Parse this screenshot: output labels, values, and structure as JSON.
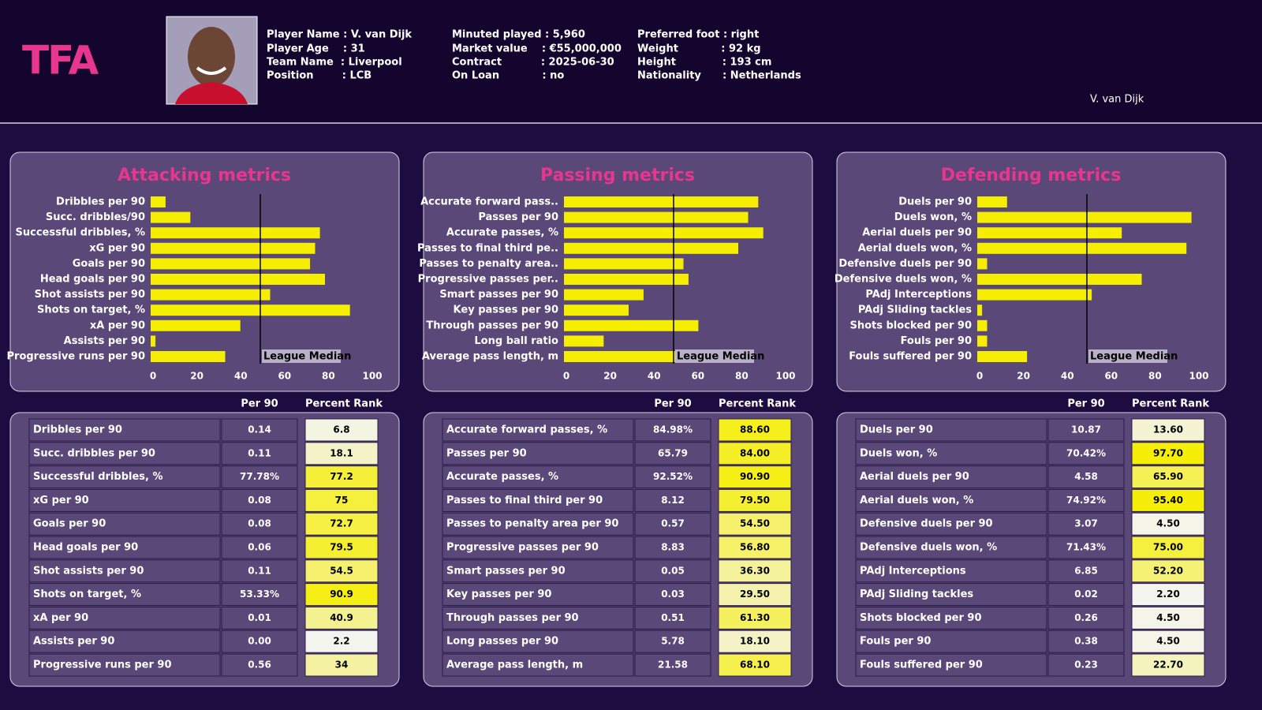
{
  "header": {
    "logo": "TFA",
    "info": [
      [
        "Player Name : V. van Dijk",
        "Player Age    : 31",
        "Team Name  : Liverpool",
        "Position        : LCB"
      ],
      [
        "Minuted played : 5,960",
        "Market value    : €55,000,000",
        "Contract           : 2025-06-30",
        "On Loan            : no"
      ],
      [
        "Preferred foot : right",
        "Weight            : 92 kg",
        "Height             : 193 cm",
        "Nationality      : Netherlands"
      ]
    ],
    "name": "V. van Dijk"
  },
  "chart_data": [
    {
      "type": "bar",
      "title": "Attacking metrics",
      "color": "#f5ee00",
      "categories": [
        "Dribbles per 90",
        "Succ. dribbles/90",
        "Successful dribbles, %",
        "xG per 90",
        "Goals per 90",
        "Head goals per 90",
        "Shot assists per 90",
        "Shots on target, %",
        "xA per 90",
        "Assists per 90",
        "Progressive runs per 90"
      ],
      "values": [
        6.8,
        18.1,
        77.2,
        75,
        72.7,
        79.5,
        54.5,
        90.9,
        40.9,
        2.2,
        34
      ],
      "xlim": [
        0,
        100
      ],
      "xticks": [
        0,
        20,
        40,
        60,
        80,
        100
      ],
      "median": 50,
      "annotation": "League Median"
    },
    {
      "type": "bar",
      "title": "Passing metrics",
      "color": "#f5ee00",
      "categories": [
        "Accurate forward pass..",
        "Passes per 90",
        "Accurate passes, %",
        "Passes to final third pe..",
        "Passes to penalty area..",
        "Progressive passes per..",
        "Smart passes per 90",
        "Key passes per 90",
        "Through passes per 90",
        "Long ball ratio",
        "Average pass length, m"
      ],
      "values": [
        88.6,
        84,
        90.9,
        79.5,
        54.5,
        56.8,
        36.3,
        29.5,
        61.3,
        18.1,
        68.1
      ],
      "xlim": [
        0,
        100
      ],
      "xticks": [
        0,
        20,
        40,
        60,
        80,
        100
      ],
      "median": 50,
      "annotation": "League Median"
    },
    {
      "type": "bar",
      "title": "Defending metrics",
      "color": "#f5ee00",
      "categories": [
        "Duels per 90",
        "Duels won, %",
        "Aerial duels per 90",
        "Aerial duels won, %",
        "Defensive duels per 90",
        "Defensive duels won, %",
        "PAdj Interceptions",
        "PAdj Sliding tackles",
        "Shots blocked per 90",
        "Fouls per 90",
        "Fouls suffered per 90"
      ],
      "values": [
        13.6,
        97.7,
        65.9,
        95.4,
        4.5,
        75,
        52.2,
        2.2,
        4.5,
        4.5,
        22.7
      ],
      "xlim": [
        0,
        100
      ],
      "xticks": [
        0,
        20,
        40,
        60,
        80,
        100
      ],
      "median": 50,
      "annotation": "League Median"
    }
  ],
  "tables": [
    {
      "columns": [
        "Per 90",
        "Percent Rank"
      ],
      "rows": [
        [
          "Dribbles per 90",
          "0.14",
          "6.8"
        ],
        [
          "Succ. dribbles per 90",
          "0.11",
          "18.1"
        ],
        [
          "Successful dribbles, %",
          "77.78%",
          "77.2"
        ],
        [
          "xG per 90",
          "0.08",
          "75"
        ],
        [
          "Goals per 90",
          "0.08",
          "72.7"
        ],
        [
          "Head goals per 90",
          "0.06",
          "79.5"
        ],
        [
          "Shot assists per 90",
          "0.11",
          "54.5"
        ],
        [
          "Shots on target, %",
          "53.33%",
          "90.9"
        ],
        [
          "xA per 90",
          "0.01",
          "40.9"
        ],
        [
          "Assists per 90",
          "0.00",
          "2.2"
        ],
        [
          "Progressive runs per 90",
          "0.56",
          "34"
        ]
      ]
    },
    {
      "columns": [
        "Per 90",
        "Percent Rank"
      ],
      "rows": [
        [
          "Accurate forward passes, %",
          "84.98%",
          "88.60"
        ],
        [
          "Passes per 90",
          "65.79",
          "84.00"
        ],
        [
          "Accurate passes, %",
          "92.52%",
          "90.90"
        ],
        [
          "Passes to final third per 90",
          "8.12",
          "79.50"
        ],
        [
          "Passes to penalty area per 90",
          "0.57",
          "54.50"
        ],
        [
          "Progressive passes per 90",
          "8.83",
          "56.80"
        ],
        [
          "Smart passes per 90",
          "0.05",
          "36.30"
        ],
        [
          "Key passes per 90",
          "0.03",
          "29.50"
        ],
        [
          "Through passes per 90",
          "0.51",
          "61.30"
        ],
        [
          "Long passes per 90",
          "5.78",
          "18.10"
        ],
        [
          "Average pass length, m",
          "21.58",
          "68.10"
        ]
      ]
    },
    {
      "columns": [
        "Per 90",
        "Percent Rank"
      ],
      "rows": [
        [
          "Duels per 90",
          "10.87",
          "13.60"
        ],
        [
          "Duels won, %",
          "70.42%",
          "97.70"
        ],
        [
          "Aerial duels per 90",
          "4.58",
          "65.90"
        ],
        [
          "Aerial duels won, %",
          "74.92%",
          "95.40"
        ],
        [
          "Defensive duels per 90",
          "3.07",
          "4.50"
        ],
        [
          "Defensive duels won, %",
          "71.43%",
          "75.00"
        ],
        [
          "PAdj Interceptions",
          "6.85",
          "52.20"
        ],
        [
          "PAdj Sliding tackles",
          "0.02",
          "2.20"
        ],
        [
          "Shots blocked per 90",
          "0.26",
          "4.50"
        ],
        [
          "Fouls per 90",
          "0.38",
          "4.50"
        ],
        [
          "Fouls suffered per 90",
          "0.23",
          "22.70"
        ]
      ]
    }
  ]
}
